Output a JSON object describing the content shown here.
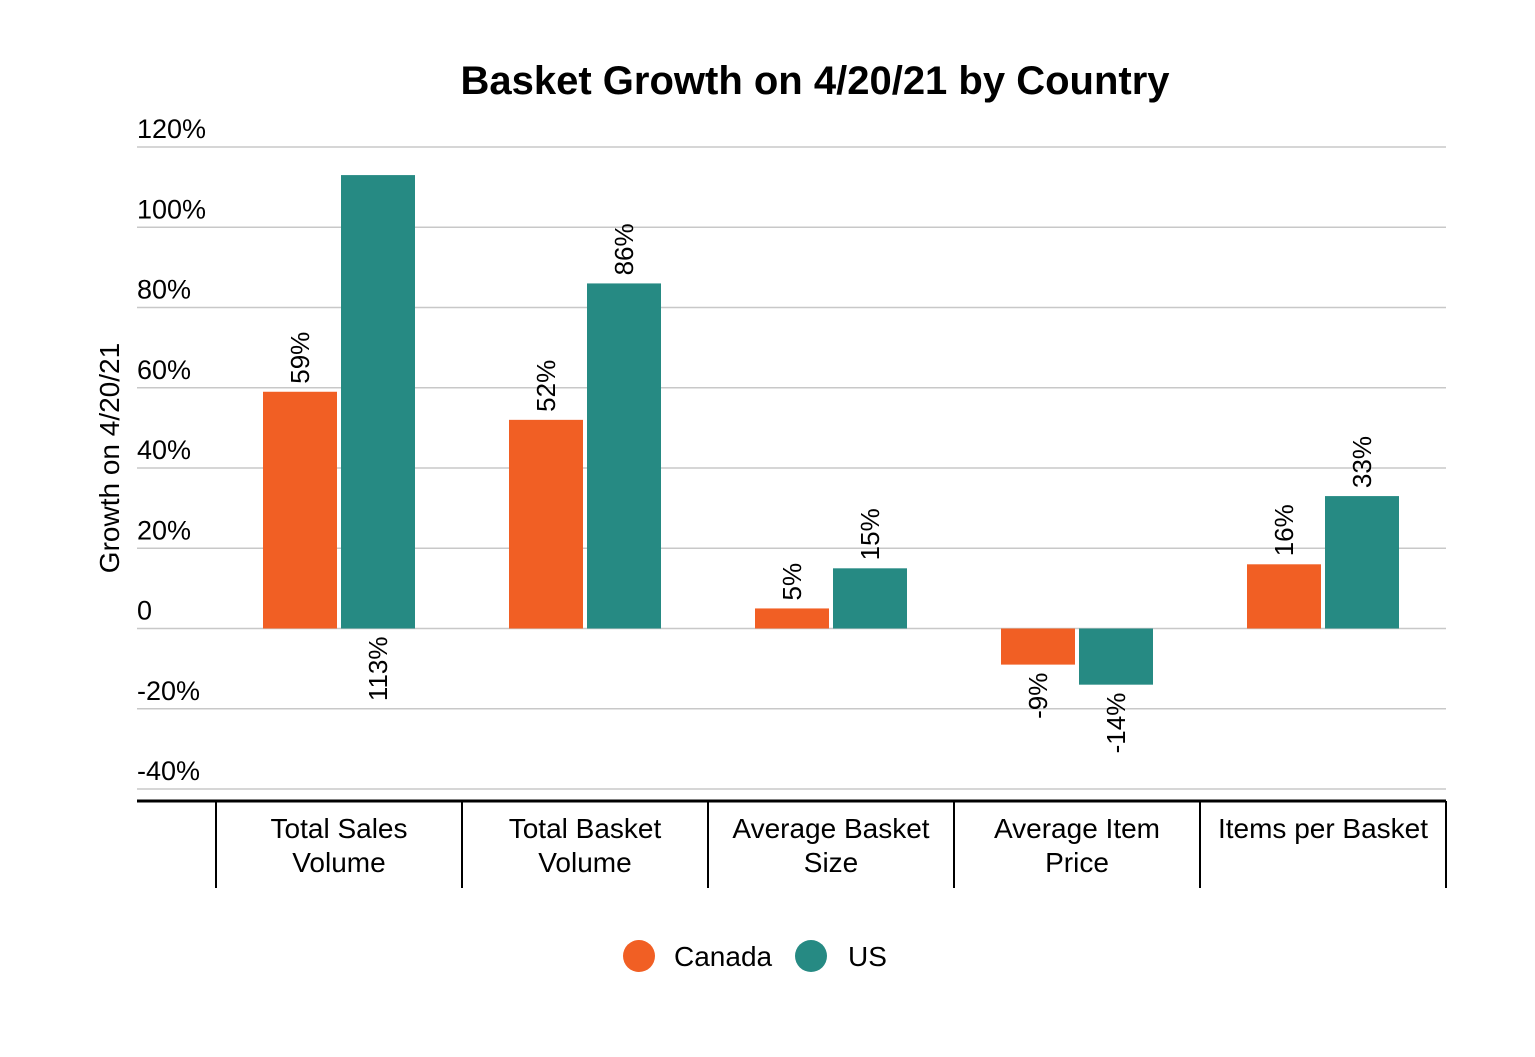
{
  "chart_data": {
    "type": "bar",
    "title": "Basket Growth on 4/20/21 by Country",
    "ylabel": "Growth on 4/20/21",
    "xlabel": "",
    "ylim": [
      -40,
      120
    ],
    "yticks": [
      120,
      100,
      80,
      60,
      40,
      20,
      0,
      -20,
      -40
    ],
    "ytick_labels": [
      "120%",
      "100%",
      "80%",
      "60%",
      "40%",
      "20%",
      "0",
      "-20%",
      "-40%"
    ],
    "grid": true,
    "legend_position": "bottom-center",
    "categories": [
      [
        "Total Sales",
        "Volume"
      ],
      [
        "Total Basket",
        "Volume"
      ],
      [
        "Average Basket",
        "Size"
      ],
      [
        "Average Item",
        "Price"
      ],
      [
        "Items per Basket"
      ]
    ],
    "series": [
      {
        "name": "Canada",
        "color": "#f15f24",
        "values": [
          59,
          52,
          5,
          -9,
          16
        ],
        "labels": [
          "59%",
          "52%",
          "5%",
          "-9%",
          "16%"
        ]
      },
      {
        "name": "US",
        "color": "#268a83",
        "values": [
          113,
          86,
          15,
          -14,
          33
        ],
        "labels": [
          "113%",
          "86%",
          "15%",
          "-14%",
          "33%"
        ]
      }
    ]
  }
}
